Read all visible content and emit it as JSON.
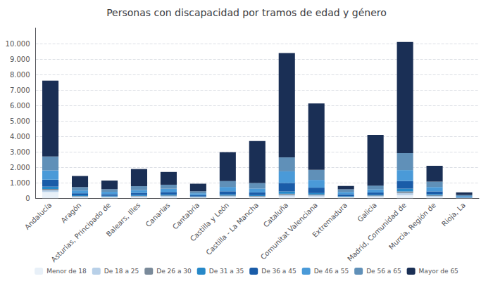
{
  "chart_data": {
    "type": "bar",
    "title": "Personas con discapacidad por tramos de edad y género",
    "categories": [
      "Andalucía",
      "Aragón",
      "Asturias, Principado de",
      "Balears, Illes",
      "Canarias",
      "Cantabria",
      "Castilla y León",
      "Castilla - La Mancha",
      "Cataluña",
      "Comunitat Valenciana",
      "Extremadura",
      "Galicia",
      "Madrid, Comunidad de",
      "Murcia, Región de",
      "Rioja, La"
    ],
    "series": [
      {
        "name": "Menor de 18",
        "color": "#e8f0f8",
        "values": [
          400,
          60,
          50,
          70,
          80,
          40,
          80,
          60,
          120,
          110,
          50,
          80,
          200,
          80,
          15
        ]
      },
      {
        "name": "De 18 a 25",
        "color": "#b8d0e8",
        "values": [
          120,
          50,
          40,
          50,
          60,
          30,
          60,
          50,
          100,
          80,
          35,
          60,
          140,
          70,
          10
        ]
      },
      {
        "name": "De 26 a 30",
        "color": "#7a8a9a",
        "values": [
          80,
          30,
          25,
          30,
          40,
          20,
          40,
          35,
          70,
          55,
          20,
          40,
          100,
          45,
          8
        ]
      },
      {
        "name": "De 31 a 35",
        "color": "#2688c8",
        "values": [
          150,
          50,
          40,
          60,
          65,
          30,
          70,
          55,
          150,
          90,
          35,
          50,
          180,
          70,
          12
        ]
      },
      {
        "name": "De 36 a 45",
        "color": "#1a5ca8",
        "values": [
          450,
          130,
          110,
          140,
          160,
          90,
          200,
          180,
          550,
          350,
          110,
          140,
          500,
          180,
          40
        ]
      },
      {
        "name": "De 46 a 55",
        "color": "#4a9ad8",
        "values": [
          600,
          180,
          150,
          180,
          210,
          110,
          280,
          250,
          750,
          500,
          155,
          200,
          700,
          280,
          55
        ]
      },
      {
        "name": "De 56 a 65",
        "color": "#6090b8",
        "values": [
          900,
          220,
          170,
          250,
          260,
          130,
          380,
          360,
          900,
          650,
          175,
          250,
          1100,
          350,
          70
        ]
      },
      {
        "name": "Mayor de 65",
        "color": "#1a2f55",
        "values": [
          4900,
          720,
          560,
          1110,
          825,
          490,
          1870,
          2710,
          6750,
          4300,
          215,
          3280,
          7180,
          1025,
          170
        ]
      }
    ],
    "ylim": [
      0,
      11000
    ],
    "yticks": [
      0,
      {
        "value": 1000,
        "label": "1.000"
      },
      {
        "value": 2000,
        "label": "2.000"
      },
      {
        "value": 3000,
        "label": "3.000"
      },
      {
        "value": 4000,
        "label": "4.000"
      },
      {
        "value": 5000,
        "label": "5.000"
      },
      {
        "value": 6000,
        "label": "6.000"
      },
      {
        "value": 7000,
        "label": "7.000"
      },
      {
        "value": 8000,
        "label": "8.000"
      },
      {
        "value": 9000,
        "label": "9.000"
      },
      {
        "value": 10000,
        "label": "10.000"
      }
    ],
    "stacked": true,
    "grid": true,
    "legend": "bottom"
  }
}
